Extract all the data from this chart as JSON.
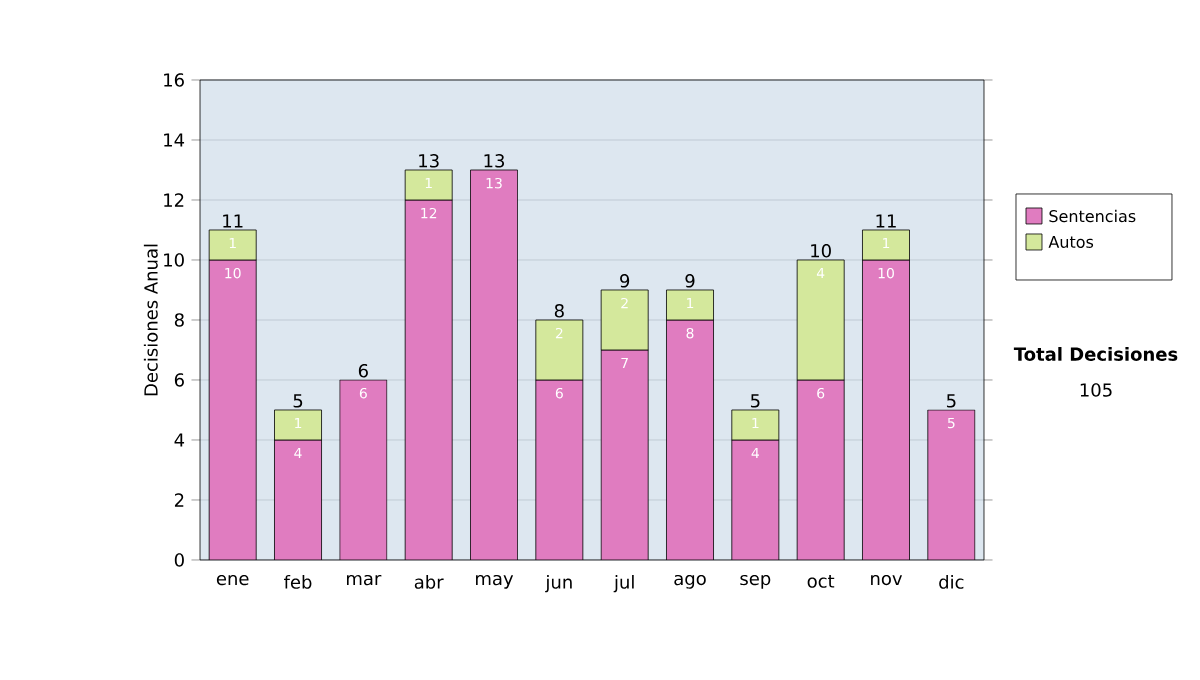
{
  "chart_data": {
    "type": "bar",
    "stacked": true,
    "ylabel": "Decisiones Anual",
    "categories": [
      "ene",
      "feb",
      "mar",
      "abr",
      "may",
      "jun",
      "jul",
      "ago",
      "sep",
      "oct",
      "nov",
      "dic"
    ],
    "series": [
      {
        "name": "Sentencias",
        "color": "#e07cc0",
        "values": [
          10,
          4,
          6,
          12,
          13,
          6,
          7,
          8,
          4,
          6,
          10,
          5
        ]
      },
      {
        "name": "Autos",
        "color": "#d4e89c",
        "values": [
          1,
          1,
          null,
          1,
          null,
          2,
          2,
          1,
          1,
          4,
          1,
          null
        ]
      }
    ],
    "totals": [
      "11",
      "5",
      "6",
      "13",
      "13",
      "8",
      "9",
      "9",
      "5",
      "10",
      "11",
      "5"
    ],
    "data_labels": true,
    "ylim": [
      0,
      16
    ],
    "yticks": [
      0,
      2,
      4,
      6,
      8,
      10,
      12,
      14,
      16
    ],
    "grid": "y",
    "legend": "right",
    "annotations": [
      "Total Decisiones",
      "105"
    ]
  }
}
